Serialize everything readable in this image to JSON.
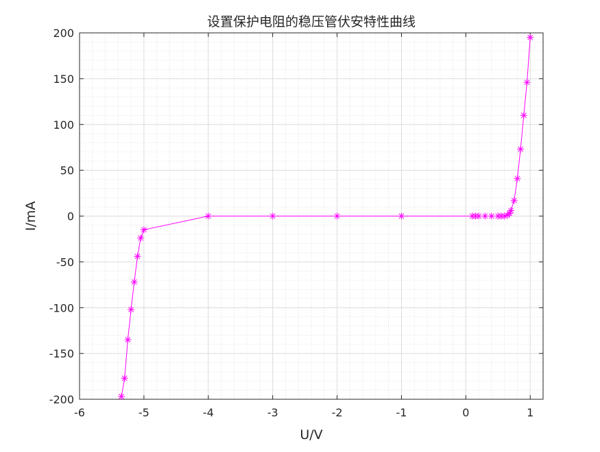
{
  "chart_data": {
    "type": "line",
    "title": "设置保护电阻的稳压管伏安特性曲线",
    "xlabel": "U/V",
    "ylabel": "I/mA",
    "xlim": [
      -6,
      1.2
    ],
    "ylim": [
      -200,
      200
    ],
    "xticks": [
      -6,
      -5,
      -4,
      -3,
      -2,
      -1,
      0,
      1
    ],
    "yticks": [
      -200,
      -150,
      -100,
      -50,
      0,
      50,
      100,
      150,
      200
    ],
    "xtick_labels": [
      "-6",
      "-5",
      "-4",
      "-3",
      "-2",
      "-1",
      "0",
      "1"
    ],
    "ytick_labels": [
      "-200",
      "-150",
      "-100",
      "-50",
      "0",
      "50",
      "100",
      "150",
      "200"
    ],
    "grid": true,
    "minor_grid": true,
    "series": [
      {
        "color": "#ff00ff",
        "marker": "asterisk",
        "x": [
          -5.35,
          -5.3,
          -5.25,
          -5.2,
          -5.15,
          -5.1,
          -5.05,
          -5.0,
          -4.0,
          -3.0,
          -2.0,
          -1.0,
          0.1,
          0.15,
          0.2,
          0.3,
          0.4,
          0.5,
          0.55,
          0.6,
          0.65,
          0.68,
          0.7,
          0.75,
          0.8,
          0.85,
          0.9,
          0.95,
          1.0
        ],
        "y": [
          -197,
          -177,
          -135,
          -102,
          -72,
          -44,
          -24,
          -15,
          0,
          0,
          0,
          0,
          0,
          0,
          0,
          0,
          0,
          0,
          0,
          0,
          1,
          3,
          6,
          17,
          41,
          73,
          110,
          146,
          195
        ]
      }
    ]
  }
}
